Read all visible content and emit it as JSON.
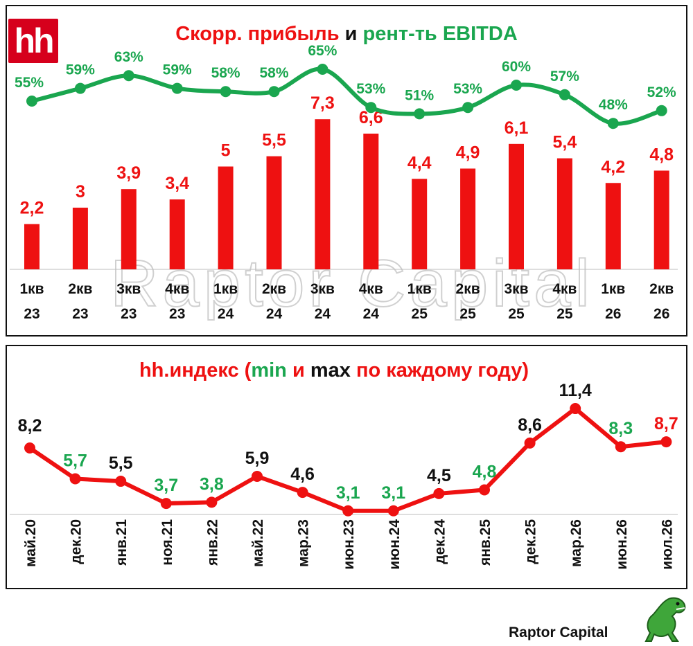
{
  "colors": {
    "red": "#ee1111",
    "green": "#1aa64f",
    "black": "#111111",
    "watermark": "#d0d0d0"
  },
  "logo": {
    "text": "hh"
  },
  "watermark": {
    "text": "Raptor Capital"
  },
  "brand": {
    "text": "Raptor Capital",
    "icon": "raptor-dinosaur-icon"
  },
  "chart_data": [
    {
      "type": "bar",
      "title_parts": [
        {
          "text": "Скорр. прибыль ",
          "color": "red"
        },
        {
          "text": "и ",
          "color": "black"
        },
        {
          "text": "рент-ть EBITDA",
          "color": "green"
        }
      ],
      "categories": [
        [
          "1кв",
          "23"
        ],
        [
          "2кв",
          "23"
        ],
        [
          "3кв",
          "23"
        ],
        [
          "4кв",
          "23"
        ],
        [
          "1кв",
          "24"
        ],
        [
          "2кв",
          "24"
        ],
        [
          "3кв",
          "24"
        ],
        [
          "4кв",
          "24"
        ],
        [
          "1кв",
          "25"
        ],
        [
          "2кв",
          "25"
        ],
        [
          "3кв",
          "25"
        ],
        [
          "4кв",
          "25"
        ],
        [
          "1кв",
          "26"
        ],
        [
          "2кв",
          "26"
        ]
      ],
      "series": [
        {
          "type": "bar",
          "values": [
            2.2,
            3,
            3.9,
            3.4,
            5,
            5.5,
            7.3,
            6.6,
            4.4,
            4.9,
            6.1,
            5.4,
            4.2,
            4.8
          ],
          "labels": [
            "2,2",
            "3",
            "3,9",
            "3,4",
            "5",
            "5,5",
            "7,3",
            "6,6",
            "4,4",
            "4,9",
            "6,1",
            "5,4",
            "4,2",
            "4,8"
          ],
          "color": "#ee1111"
        },
        {
          "type": "line",
          "values": [
            55,
            59,
            63,
            59,
            58,
            58,
            65,
            53,
            51,
            53,
            60,
            57,
            48,
            52
          ],
          "labels": [
            "55%",
            "59%",
            "63%",
            "59%",
            "58%",
            "58%",
            "65%",
            "53%",
            "51%",
            "53%",
            "60%",
            "57%",
            "48%",
            "52%"
          ],
          "color": "#1aa64f"
        }
      ],
      "grid": false,
      "legend": "none"
    },
    {
      "type": "line",
      "title_parts": [
        {
          "text": "hh.индекс (",
          "color": "red"
        },
        {
          "text": "min ",
          "color": "green"
        },
        {
          "text": "и ",
          "color": "red"
        },
        {
          "text": "max ",
          "color": "black"
        },
        {
          "text": "по каждому году)",
          "color": "red"
        }
      ],
      "categories": [
        "май.20",
        "дек.20",
        "янв.21",
        "ноя.21",
        "янв.22",
        "май.22",
        "мар.23",
        "июн.23",
        "июн.24",
        "дек.24",
        "янв.25",
        "дек.25",
        "мар.26",
        "июн.26",
        "июл.26"
      ],
      "values": [
        8.2,
        5.7,
        5.5,
        3.7,
        3.8,
        5.9,
        4.6,
        3.1,
        3.1,
        4.5,
        4.8,
        8.6,
        11.4,
        8.3,
        8.7
      ],
      "labels": [
        "8,2",
        "5,7",
        "5,5",
        "3,7",
        "3,8",
        "5,9",
        "4,6",
        "3,1",
        "3,1",
        "4,5",
        "4,8",
        "8,6",
        "11,4",
        "8,3",
        "8,7"
      ],
      "label_colors": [
        "black",
        "green",
        "black",
        "green",
        "green",
        "black",
        "black",
        "green",
        "green",
        "black",
        "green",
        "black",
        "black",
        "green",
        "red"
      ],
      "line_color": "#ee1111",
      "grid": false,
      "legend": "none"
    }
  ]
}
